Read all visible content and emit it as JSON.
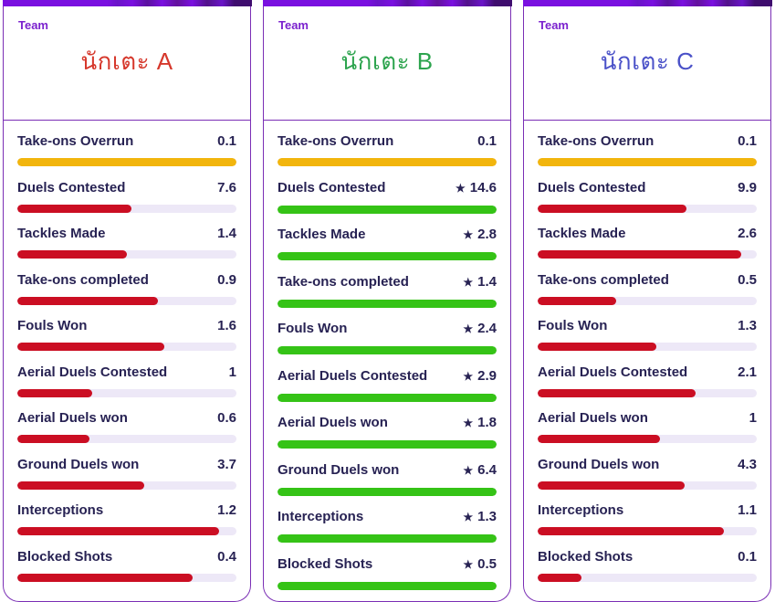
{
  "header_label": "Team",
  "star_icon": "★",
  "colors": {
    "card_border": "#7a2eb5",
    "strip_base": "#7a10e0",
    "team_label": "#7b22ce",
    "stat_text": "#272253",
    "bar_track": "#ede8f7",
    "bar": {
      "red": "#cb0e23",
      "green": "#35c316",
      "yellow": "#f2b50d"
    }
  },
  "players": [
    {
      "id": "A",
      "name": "นักเตะ A",
      "name_color": "#d6382c"
    },
    {
      "id": "B",
      "name": "นักเตะ B",
      "name_color": "#2da44e"
    },
    {
      "id": "C",
      "name": "นักเตะ C",
      "name_color": "#4a51c8"
    }
  ],
  "stats": [
    {
      "label": "Take-ons Overrun",
      "values": [
        {
          "display": "0.1",
          "value": 0.1,
          "pct": 100,
          "color": "yellow",
          "starred": false
        },
        {
          "display": "0.1",
          "value": 0.1,
          "pct": 100,
          "color": "yellow",
          "starred": false
        },
        {
          "display": "0.1",
          "value": 0.1,
          "pct": 100,
          "color": "yellow",
          "starred": false
        }
      ]
    },
    {
      "label": "Duels Contested",
      "values": [
        {
          "display": "7.6",
          "value": 7.6,
          "pct": 52,
          "color": "red",
          "starred": false
        },
        {
          "display": "14.6",
          "value": 14.6,
          "pct": 100,
          "color": "green",
          "starred": true
        },
        {
          "display": "9.9",
          "value": 9.9,
          "pct": 68,
          "color": "red",
          "starred": false
        }
      ]
    },
    {
      "label": "Tackles Made",
      "values": [
        {
          "display": "1.4",
          "value": 1.4,
          "pct": 50,
          "color": "red",
          "starred": false
        },
        {
          "display": "2.8",
          "value": 2.8,
          "pct": 100,
          "color": "green",
          "starred": true
        },
        {
          "display": "2.6",
          "value": 2.6,
          "pct": 93,
          "color": "red",
          "starred": false
        }
      ]
    },
    {
      "label": "Take-ons completed",
      "values": [
        {
          "display": "0.9",
          "value": 0.9,
          "pct": 64,
          "color": "red",
          "starred": false
        },
        {
          "display": "1.4",
          "value": 1.4,
          "pct": 100,
          "color": "green",
          "starred": true
        },
        {
          "display": "0.5",
          "value": 0.5,
          "pct": 36,
          "color": "red",
          "starred": false
        }
      ]
    },
    {
      "label": "Fouls Won",
      "values": [
        {
          "display": "1.6",
          "value": 1.6,
          "pct": 67,
          "color": "red",
          "starred": false
        },
        {
          "display": "2.4",
          "value": 2.4,
          "pct": 100,
          "color": "green",
          "starred": true
        },
        {
          "display": "1.3",
          "value": 1.3,
          "pct": 54,
          "color": "red",
          "starred": false
        }
      ]
    },
    {
      "label": "Aerial Duels Contested",
      "values": [
        {
          "display": "1",
          "value": 1,
          "pct": 34,
          "color": "red",
          "starred": false
        },
        {
          "display": "2.9",
          "value": 2.9,
          "pct": 100,
          "color": "green",
          "starred": true
        },
        {
          "display": "2.1",
          "value": 2.1,
          "pct": 72,
          "color": "red",
          "starred": false
        }
      ]
    },
    {
      "label": "Aerial Duels won",
      "values": [
        {
          "display": "0.6",
          "value": 0.6,
          "pct": 33,
          "color": "red",
          "starred": false
        },
        {
          "display": "1.8",
          "value": 1.8,
          "pct": 100,
          "color": "green",
          "starred": true
        },
        {
          "display": "1",
          "value": 1,
          "pct": 56,
          "color": "red",
          "starred": false
        }
      ]
    },
    {
      "label": "Ground Duels won",
      "values": [
        {
          "display": "3.7",
          "value": 3.7,
          "pct": 58,
          "color": "red",
          "starred": false
        },
        {
          "display": "6.4",
          "value": 6.4,
          "pct": 100,
          "color": "green",
          "starred": true
        },
        {
          "display": "4.3",
          "value": 4.3,
          "pct": 67,
          "color": "red",
          "starred": false
        }
      ]
    },
    {
      "label": "Interceptions",
      "values": [
        {
          "display": "1.2",
          "value": 1.2,
          "pct": 92,
          "color": "red",
          "starred": false
        },
        {
          "display": "1.3",
          "value": 1.3,
          "pct": 100,
          "color": "green",
          "starred": true
        },
        {
          "display": "1.1",
          "value": 1.1,
          "pct": 85,
          "color": "red",
          "starred": false
        }
      ]
    },
    {
      "label": "Blocked Shots",
      "values": [
        {
          "display": "0.4",
          "value": 0.4,
          "pct": 80,
          "color": "red",
          "starred": false
        },
        {
          "display": "0.5",
          "value": 0.5,
          "pct": 100,
          "color": "green",
          "starred": true
        },
        {
          "display": "0.1",
          "value": 0.1,
          "pct": 20,
          "color": "red",
          "starred": false
        }
      ]
    }
  ]
}
